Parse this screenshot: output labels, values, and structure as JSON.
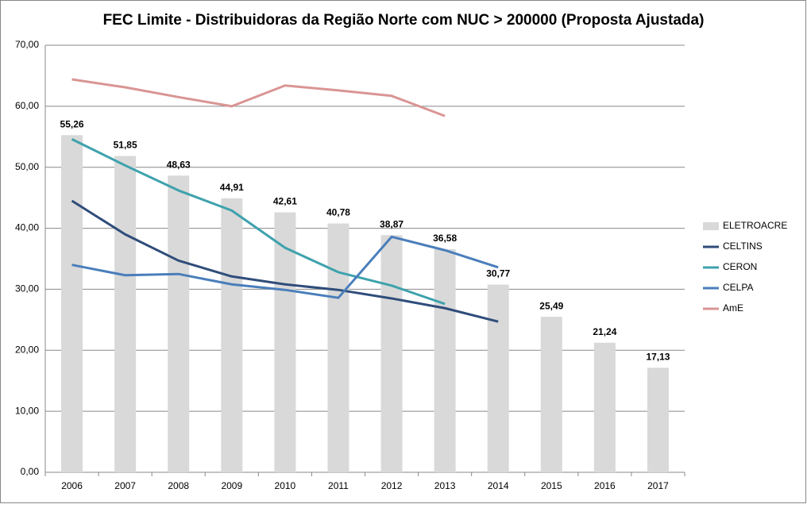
{
  "chart_data": {
    "type": "combo",
    "title": "FEC Limite - Distribuidoras da Região Norte com NUC > 200000 (Proposta Ajustada)",
    "categories": [
      "2006",
      "2007",
      "2008",
      "2009",
      "2010",
      "2011",
      "2012",
      "2013",
      "2014",
      "2015",
      "2016",
      "2017"
    ],
    "series": [
      {
        "name": "ELETROACRE",
        "type": "bar",
        "color": "#d9d9d9",
        "values": [
          55.26,
          51.85,
          48.63,
          44.91,
          42.61,
          40.78,
          38.87,
          36.58,
          30.77,
          25.49,
          21.24,
          17.13
        ],
        "value_labels": [
          "55,26",
          "51,85",
          "48,63",
          "44,91",
          "42,61",
          "40,78",
          "38,87",
          "36,58",
          "30,77",
          "25,49",
          "21,24",
          "17,13"
        ]
      },
      {
        "name": "CELTINS",
        "type": "line",
        "color": "#2f4d7a",
        "values": [
          44.5,
          39.0,
          34.7,
          32.1,
          30.8,
          29.9,
          28.5,
          26.9,
          24.7,
          null,
          null,
          null
        ]
      },
      {
        "name": "CERON",
        "type": "line",
        "color": "#3ea2ad",
        "values": [
          54.6,
          50.3,
          46.2,
          42.9,
          36.8,
          32.8,
          30.6,
          27.6,
          null,
          null,
          null,
          null
        ]
      },
      {
        "name": "CELPA",
        "type": "line",
        "color": "#4a7ebb",
        "values": [
          34.0,
          32.3,
          32.5,
          30.8,
          29.9,
          28.6,
          38.6,
          36.4,
          33.6,
          null,
          null,
          null
        ]
      },
      {
        "name": "AmE",
        "type": "line",
        "color": "#d99594",
        "values": [
          64.4,
          63.1,
          61.5,
          60.0,
          63.4,
          62.6,
          61.7,
          58.4,
          null,
          null,
          null,
          null
        ]
      }
    ],
    "ylim": [
      0,
      70
    ],
    "yticks": [
      {
        "value": 0,
        "label": "0,00"
      },
      {
        "value": 10,
        "label": "10,00"
      },
      {
        "value": 20,
        "label": "20,00"
      },
      {
        "value": 30,
        "label": "30,00"
      },
      {
        "value": 40,
        "label": "40,00"
      },
      {
        "value": 50,
        "label": "50,00"
      },
      {
        "value": 60,
        "label": "60,00"
      },
      {
        "value": 70,
        "label": "70,00"
      }
    ],
    "grid": true,
    "legend": "right"
  }
}
